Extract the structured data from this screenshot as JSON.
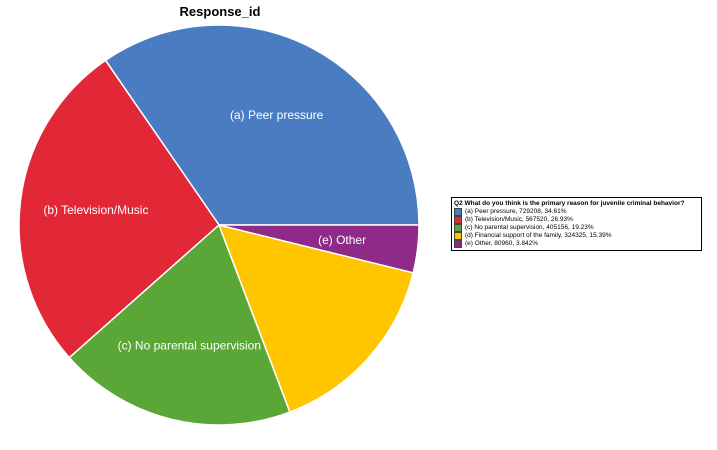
{
  "chart_data": {
    "type": "pie",
    "title": "Response_id",
    "legend_title": "Q2 What do you think is the primary reason for juvenile criminal behavior?",
    "legend_position": "right",
    "slices": [
      {
        "label": "(a) Peer pressure",
        "value": 729208,
        "percent": "34.61%",
        "legend": "(a) Peer pressure, 729208, 34.61%",
        "color": "#4a7cc2",
        "show_label": true
      },
      {
        "label": "(b) Television/Music",
        "value": 567520,
        "percent": "26.93%",
        "legend": "(b) Television/Music, 567520, 26.93%",
        "color": "#e22837",
        "show_label": true
      },
      {
        "label": "(c) No parental supervision",
        "value": 405156,
        "percent": "19.23%",
        "legend": "(c) No parental supervision, 405156, 19.23%",
        "color": "#5aa636",
        "show_label": true
      },
      {
        "label": "(d) Financial support of the family",
        "value": 324325,
        "percent": "15.39%",
        "legend": "(d) Financial support of the family, 324325, 15.39%",
        "color": "#ffc600",
        "show_label": false
      },
      {
        "label": "(e) Other",
        "value": 80960,
        "percent": "3.842%",
        "legend": "(e) Other, 80960, 3.842%",
        "color": "#8e2a88",
        "show_label": true
      }
    ]
  }
}
